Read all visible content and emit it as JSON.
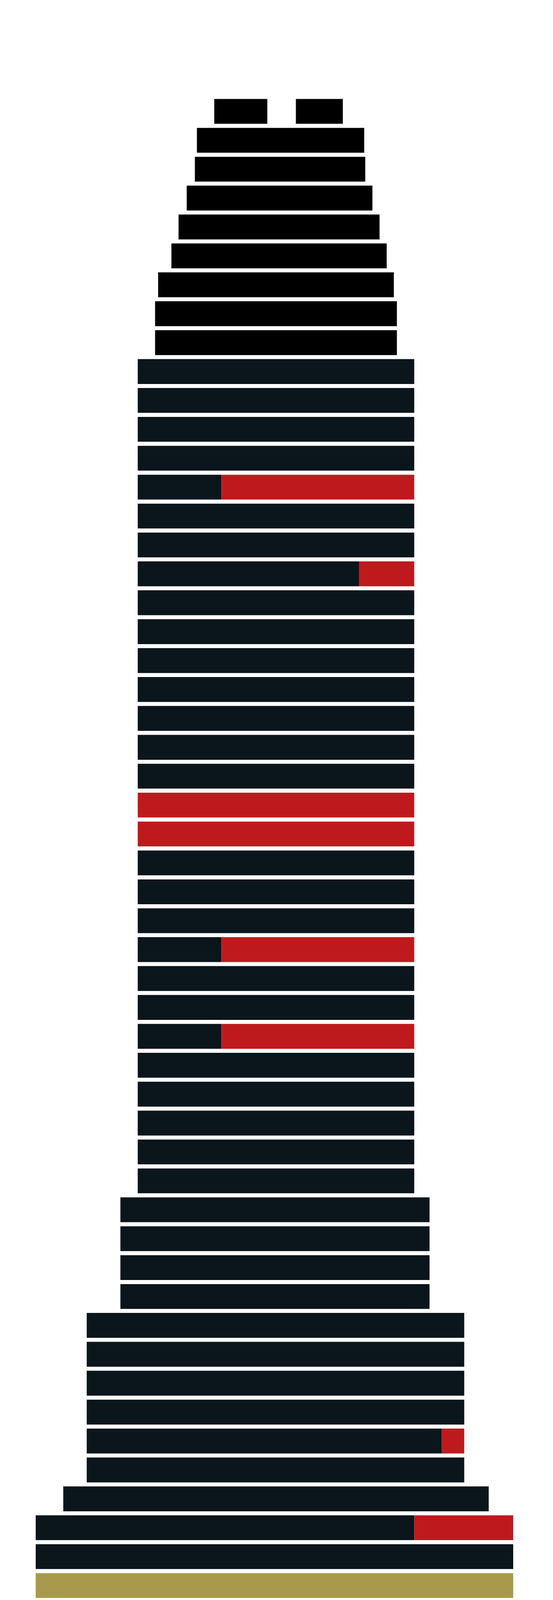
{
  "chart_data": {
    "type": "bar",
    "orientation": "horizontal",
    "stacked": false,
    "grid": false,
    "tick_labels": false,
    "xlim": [
      0,
      542
    ],
    "categories": [
      null,
      null,
      null,
      null,
      null,
      null,
      null,
      null,
      null,
      null,
      null,
      null,
      null,
      null,
      null,
      null,
      null,
      null,
      null,
      null,
      null,
      null,
      null,
      null,
      null,
      null,
      null,
      null,
      null,
      null,
      null,
      null,
      null,
      null,
      null,
      null,
      null,
      null,
      null,
      null,
      null,
      null,
      null,
      null,
      null,
      null,
      null,
      null,
      null,
      null,
      null,
      null
    ],
    "series": [
      {
        "color": "#0a151c",
        "values": [
          [
            210,
            262
          ],
          [
            193,
            357
          ],
          [
            191,
            358
          ],
          [
            183,
            365
          ],
          [
            175,
            372
          ],
          [
            168,
            379
          ],
          [
            155,
            386
          ],
          [
            152,
            389
          ],
          [
            152,
            389
          ],
          [
            135,
            406
          ],
          [
            135,
            406
          ],
          [
            135,
            406
          ],
          [
            135,
            406
          ],
          [
            135,
            217
          ],
          [
            135,
            406
          ],
          [
            135,
            406
          ],
          [
            135,
            352
          ],
          [
            135,
            406
          ],
          [
            135,
            406
          ],
          [
            135,
            406
          ],
          [
            135,
            406
          ],
          [
            135,
            406
          ],
          [
            135,
            406
          ],
          [
            135,
            406
          ],
          [
            135,
            406
          ],
          [
            135,
            406
          ],
          [
            135,
            406
          ],
          [
            135,
            406
          ],
          [
            135,
            406
          ],
          [
            135,
            217
          ],
          [
            135,
            406
          ],
          [
            135,
            406
          ],
          [
            135,
            217
          ],
          [
            135,
            406
          ],
          [
            135,
            406
          ],
          [
            135,
            406
          ],
          [
            135,
            406
          ],
          [
            135,
            406
          ],
          [
            118,
            421
          ],
          [
            118,
            421
          ],
          [
            118,
            421
          ],
          [
            118,
            421
          ],
          [
            85,
            455
          ],
          [
            85,
            455
          ],
          [
            85,
            455
          ],
          [
            85,
            455
          ],
          [
            85,
            433
          ],
          [
            85,
            455
          ],
          [
            62,
            479
          ],
          [
            35,
            406
          ],
          [
            35,
            503
          ],
          [
            35,
            503
          ]
        ],
        "colors": [
          "#000000",
          "#000000",
          "#000000",
          "#000000",
          "#000000",
          "#000000",
          "#000000",
          "#000000",
          "#000000",
          "#0a151c",
          "#0a151c",
          "#0a151c",
          "#0a151c",
          "#0a151c",
          "#0a151c",
          "#0a151c",
          "#0a151c",
          "#0a151c",
          "#0a151c",
          "#0a151c",
          "#0a151c",
          "#0a151c",
          "#0a151c",
          "#0a151c",
          "#be1a1e",
          "#be1a1e",
          "#0a151c",
          "#0a151c",
          "#0a151c",
          "#0a151c",
          "#0a151c",
          "#0a151c",
          "#0a151c",
          "#0a151c",
          "#0a151c",
          "#0a151c",
          "#0a151c",
          "#0a151c",
          "#0a151c",
          "#0a151c",
          "#0a151c",
          "#0a151c",
          "#0a151c",
          "#0a151c",
          "#0a151c",
          "#0a151c",
          "#0a151c",
          "#0a151c",
          "#0a151c",
          "#0a151c",
          "#0a151c",
          "#a89a4a"
        ]
      },
      {
        "color": "#be1a1e",
        "values": [
          [
            290,
            336
          ],
          null,
          null,
          null,
          null,
          null,
          null,
          null,
          null,
          null,
          null,
          null,
          null,
          [
            217,
            406
          ],
          null,
          null,
          [
            352,
            406
          ],
          null,
          null,
          null,
          null,
          null,
          null,
          null,
          null,
          null,
          null,
          null,
          null,
          [
            217,
            406
          ],
          null,
          null,
          [
            217,
            406
          ],
          null,
          null,
          null,
          null,
          null,
          null,
          null,
          null,
          null,
          null,
          null,
          null,
          null,
          [
            433,
            455
          ],
          null,
          null,
          [
            406,
            503
          ],
          null,
          null
        ],
        "colors": [
          "#000000",
          "#be1a1e",
          "#be1a1e",
          "#be1a1e",
          "#be1a1e",
          "#be1a1e",
          "#be1a1e",
          "#be1a1e",
          "#be1a1e",
          "#be1a1e",
          "#be1a1e",
          "#be1a1e",
          "#be1a1e",
          "#be1a1e",
          "#be1a1e",
          "#be1a1e",
          "#be1a1e",
          "#be1a1e",
          "#be1a1e",
          "#be1a1e",
          "#be1a1e",
          "#be1a1e",
          "#be1a1e",
          "#be1a1e",
          "#be1a1e",
          "#be1a1e",
          "#be1a1e",
          "#be1a1e",
          "#be1a1e",
          "#be1a1e",
          "#be1a1e",
          "#be1a1e",
          "#be1a1e",
          "#be1a1e",
          "#be1a1e",
          "#be1a1e",
          "#be1a1e",
          "#be1a1e",
          "#be1a1e",
          "#be1a1e",
          "#be1a1e",
          "#be1a1e",
          "#be1a1e",
          "#be1a1e",
          "#be1a1e",
          "#be1a1e",
          "#be1a1e",
          "#be1a1e",
          "#be1a1e",
          "#be1a1e",
          "#be1a1e",
          "#be1a1e"
        ]
      }
    ]
  }
}
